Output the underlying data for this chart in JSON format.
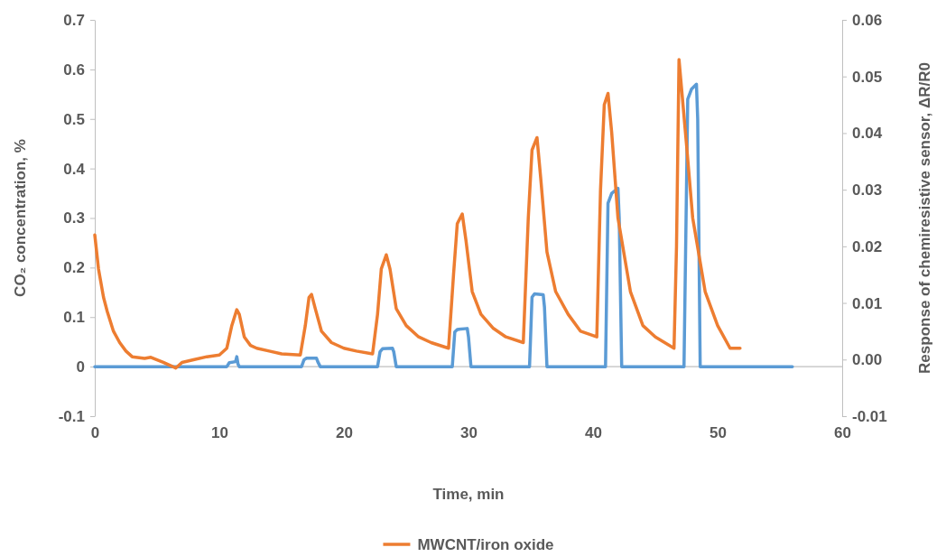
{
  "chart_data": {
    "type": "line",
    "xlabel": "Time, min",
    "ylabel": "CO₂ concentration, %",
    "y2label": "Response of chemiresistive sensor, ΔR/R0",
    "xlim": [
      0,
      60
    ],
    "xticks": [
      0,
      10,
      20,
      30,
      40,
      50,
      60
    ],
    "ylim": [
      -0.1,
      0.7
    ],
    "yticks": [
      {
        "value": -0.1,
        "label": "-0.1"
      },
      0,
      {
        "value": 0.1,
        "label": "0.1"
      },
      {
        "value": 0.2,
        "label": "0.2"
      },
      {
        "value": 0.3,
        "label": "0.3"
      },
      {
        "value": 0.4,
        "label": "0.4"
      },
      {
        "value": 0.5,
        "label": "0.5"
      },
      {
        "value": 0.6,
        "label": "0.6"
      },
      {
        "value": 0.7,
        "label": "0.7"
      }
    ],
    "y2lim": [
      -0.01,
      0.06
    ],
    "y2ticks": [
      {
        "value": -0.01,
        "label": "-0.01"
      },
      {
        "value": 0,
        "label": "0.00"
      },
      {
        "value": 0.01,
        "label": "0.01"
      },
      {
        "value": 0.02,
        "label": "0.02"
      },
      {
        "value": 0.03,
        "label": "0.03"
      },
      {
        "value": 0.04,
        "label": "0.04"
      },
      {
        "value": 0.05,
        "label": "0.05"
      },
      {
        "value": 0.06,
        "label": "0.06"
      }
    ],
    "grid": false,
    "legend": "bottom",
    "marker": "none",
    "line_style": "solid",
    "ref_lines": [
      {
        "axis": "y",
        "value": 0,
        "color": "#bfbfbf"
      }
    ],
    "series": [
      {
        "color": "#5b9bd5",
        "x": [
          0,
          10.6,
          10.8,
          11.3,
          11.4,
          11.5,
          11.6,
          11.8,
          16.6,
          16.8,
          17.0,
          17.8,
          17.9,
          18.1,
          22.7,
          22.9,
          23.1,
          23.9,
          24.0,
          24.2,
          28.7,
          28.9,
          29.1,
          29.9,
          30.0,
          30.2,
          34.9,
          35.1,
          35.3,
          36.0,
          36.1,
          36.3,
          41.0,
          41.2,
          41.5,
          42.0,
          42.1,
          42.3,
          47.3,
          47.6,
          47.9,
          48.3,
          48.4,
          48.6,
          56
        ],
        "values": [
          0,
          0,
          0.008,
          0.01,
          0.02,
          0.005,
          0,
          0,
          0,
          0.014,
          0.017,
          0.017,
          0.01,
          0,
          0,
          0.03,
          0.036,
          0.037,
          0.03,
          0,
          0,
          0.07,
          0.075,
          0.077,
          0.06,
          0,
          0,
          0.14,
          0.147,
          0.145,
          0.12,
          0,
          0,
          0.33,
          0.35,
          0.36,
          0.3,
          0,
          0,
          0.54,
          0.56,
          0.57,
          0.5,
          0,
          0
        ]
      },
      {
        "name": "MWCNT/iron oxide",
        "color": "#ed7d31",
        "axis": "y2",
        "x": [
          0,
          0.3,
          0.7,
          1,
          1.5,
          2,
          2.5,
          3,
          4,
          4.5,
          5.5,
          6.5,
          7,
          8,
          9,
          10,
          10.6,
          11,
          11.4,
          11.6,
          12,
          12.5,
          13,
          14,
          15,
          16.5,
          16.9,
          17.2,
          17.4,
          17.7,
          18.2,
          19,
          20,
          21,
          22.3,
          22.7,
          23,
          23.4,
          23.7,
          24.2,
          25,
          26,
          27,
          28.4,
          28.8,
          29.1,
          29.5,
          29.8,
          30.3,
          31,
          32,
          33,
          34.4,
          34.8,
          35.1,
          35.5,
          35.8,
          36.3,
          37,
          38,
          39,
          40.3,
          40.6,
          40.9,
          41.2,
          41.5,
          42,
          43,
          44,
          45,
          46.5,
          46.7,
          46.9,
          47.1,
          47.5,
          48,
          49,
          50,
          51,
          51.8
        ],
        "values": [
          0.022,
          0.016,
          0.011,
          0.0085,
          0.005,
          0.003,
          0.0015,
          0.0005,
          0.0002,
          0.0004,
          -0.0005,
          -0.0015,
          -0.0005,
          0,
          0.0005,
          0.0008,
          0.002,
          0.006,
          0.0088,
          0.008,
          0.004,
          0.0025,
          0.002,
          0.0015,
          0.001,
          0.0008,
          0.006,
          0.011,
          0.0115,
          0.009,
          0.005,
          0.003,
          0.002,
          0.0015,
          0.001,
          0.008,
          0.016,
          0.0185,
          0.016,
          0.009,
          0.006,
          0.004,
          0.003,
          0.002,
          0.015,
          0.024,
          0.0257,
          0.021,
          0.012,
          0.008,
          0.0055,
          0.004,
          0.003,
          0.025,
          0.037,
          0.0392,
          0.032,
          0.019,
          0.012,
          0.008,
          0.005,
          0.004,
          0.03,
          0.045,
          0.047,
          0.04,
          0.025,
          0.012,
          0.006,
          0.004,
          0.002,
          0.02,
          0.053,
          0.048,
          0.038,
          0.025,
          0.012,
          0.006,
          0.002,
          0.002
        ]
      }
    ]
  }
}
